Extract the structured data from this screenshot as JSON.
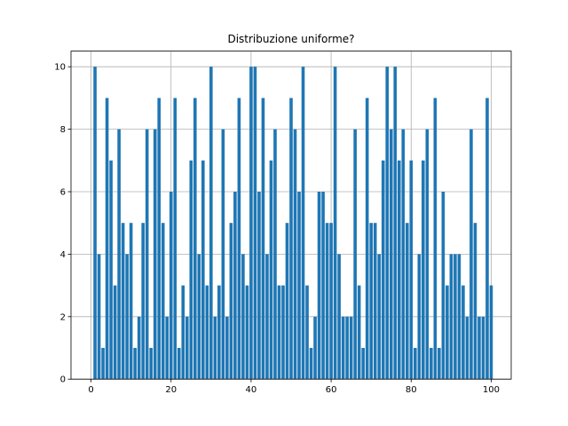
{
  "chart_data": {
    "type": "bar",
    "title": "Distribuzione uniforme?",
    "xlabel": "",
    "ylabel": "",
    "xlim": [
      -5,
      105
    ],
    "ylim": [
      0,
      10.5
    ],
    "xticks": [
      0,
      20,
      40,
      60,
      80,
      100
    ],
    "yticks": [
      0,
      2,
      4,
      6,
      8,
      10
    ],
    "grid": true,
    "bar_color": "#1f77b4",
    "x": [
      1,
      2,
      3,
      4,
      5,
      6,
      7,
      8,
      9,
      10,
      11,
      12,
      13,
      14,
      15,
      16,
      17,
      18,
      19,
      20,
      21,
      22,
      23,
      24,
      25,
      26,
      27,
      28,
      29,
      30,
      31,
      32,
      33,
      34,
      35,
      36,
      37,
      38,
      39,
      40,
      41,
      42,
      43,
      44,
      45,
      46,
      47,
      48,
      49,
      50,
      51,
      52,
      53,
      54,
      55,
      56,
      57,
      58,
      59,
      60,
      61,
      62,
      63,
      64,
      65,
      66,
      67,
      68,
      69,
      70,
      71,
      72,
      73,
      74,
      75,
      76,
      77,
      78,
      79,
      80,
      81,
      82,
      83,
      84,
      85,
      86,
      87,
      88,
      89,
      90,
      91,
      92,
      93,
      94,
      95,
      96,
      97,
      98,
      99,
      100
    ],
    "values": [
      10,
      4,
      1,
      9,
      7,
      3,
      8,
      5,
      4,
      5,
      1,
      2,
      5,
      8,
      1,
      8,
      9,
      5,
      2,
      6,
      9,
      1,
      3,
      2,
      7,
      9,
      4,
      7,
      3,
      10,
      2,
      3,
      8,
      2,
      5,
      6,
      9,
      4,
      3,
      10,
      10,
      6,
      9,
      4,
      7,
      8,
      3,
      3,
      5,
      9,
      8,
      6,
      10,
      3,
      1,
      2,
      6,
      6,
      5,
      5,
      10,
      4,
      2,
      2,
      2,
      8,
      3,
      1,
      9,
      5,
      5,
      4,
      7,
      10,
      8,
      10,
      7,
      8,
      5,
      7,
      1,
      4,
      7,
      8,
      1,
      9,
      1,
      6,
      3,
      4,
      4,
      4,
      3,
      2,
      8,
      5,
      2,
      2,
      9,
      3
    ]
  }
}
